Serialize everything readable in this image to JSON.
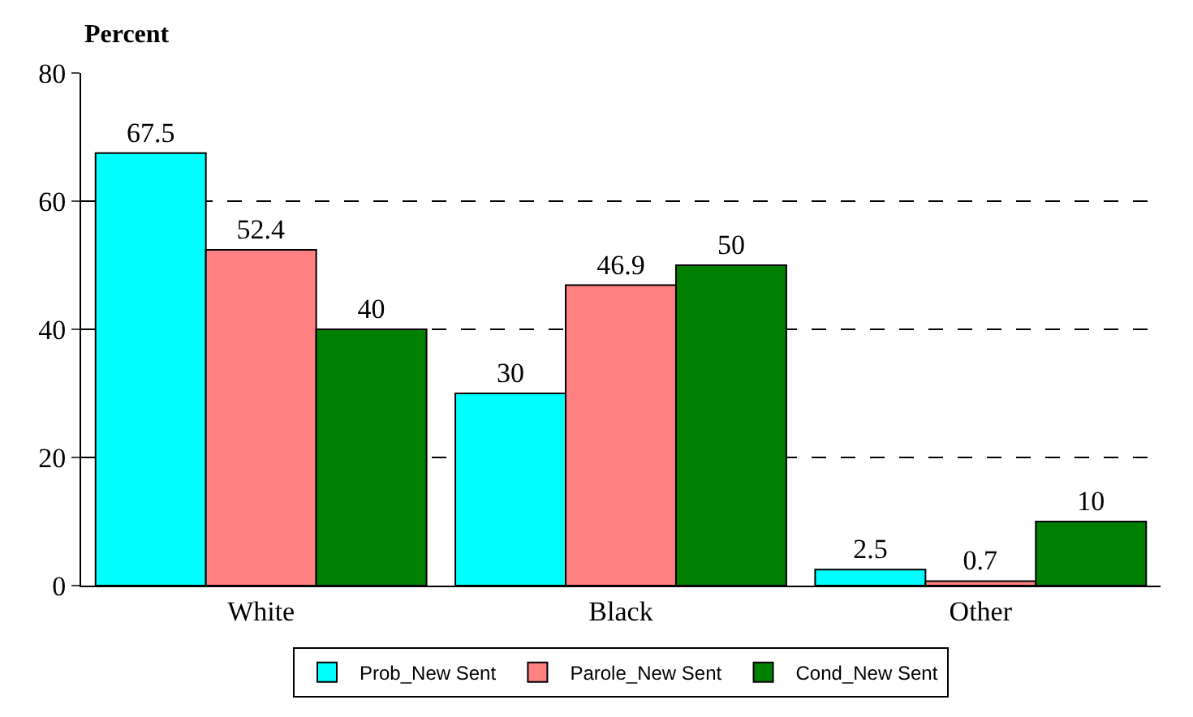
{
  "chart_data": {
    "type": "bar",
    "ylabel": "Percent",
    "categories": [
      "White",
      "Black",
      "Other"
    ],
    "series": [
      {
        "name": "Prob_New Sent",
        "color": "#00ffff",
        "values": [
          67.5,
          30,
          2.5
        ]
      },
      {
        "name": "Parole_New Sent",
        "color": "#ff8080",
        "values": [
          52.4,
          46.9,
          0.7
        ]
      },
      {
        "name": "Cond_New Sent",
        "color": "#008000",
        "values": [
          40,
          50,
          10
        ]
      }
    ],
    "ylim": [
      0,
      80
    ],
    "yticks": [
      0,
      20,
      40,
      60,
      80
    ],
    "grid": "y",
    "legend": "bottom",
    "data_labels": true
  }
}
